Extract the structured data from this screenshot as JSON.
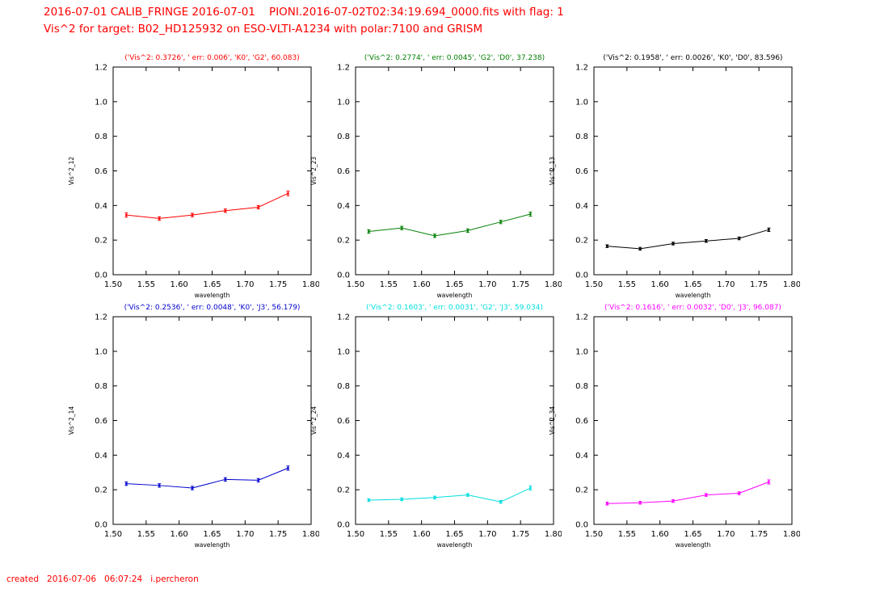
{
  "figure": {
    "title_line1": "2016-07-01 CALIB_FRINGE 2016-07-01    PIONI.2016-07-02T02:34:19.694_0000.fits with flag: 1",
    "title_line2": "Vis^2 for target: B02_HD125932 on ESO-VLTI-A1234 with polar:7100 and GRISM",
    "title_color": "#ff0000",
    "created": "created   2016-07-06   06:07:24   i.percheron"
  },
  "chart_data": [
    {
      "id": "subplot-vis2-12",
      "type": "line",
      "title": "('Vis^2: 0.3726', ' err: 0.006', 'K0', 'G2', 60.083)",
      "color": "#ff0000",
      "xlabel": "wavelength",
      "ylabel": "Vis^2_12",
      "xlim": [
        1.5,
        1.8
      ],
      "ylim": [
        0.0,
        1.2
      ],
      "xticks": [
        1.5,
        1.55,
        1.6,
        1.65,
        1.7,
        1.75,
        1.8
      ],
      "xtick_labels": [
        "1.50",
        "1.55",
        "1.60",
        "1.65",
        "1.70",
        "1.75",
        "1.80"
      ],
      "yticks": [
        0.0,
        0.2,
        0.4,
        0.6,
        0.8,
        1.0,
        1.2
      ],
      "ytick_labels": [
        "0.0",
        "0.2",
        "0.4",
        "0.6",
        "0.8",
        "1.0",
        "1.2"
      ],
      "x": [
        1.52,
        1.57,
        1.62,
        1.67,
        1.72,
        1.765
      ],
      "y": [
        0.345,
        0.325,
        0.345,
        0.37,
        0.39,
        0.47
      ],
      "yerr": [
        0.012,
        0.01,
        0.01,
        0.01,
        0.01,
        0.013
      ],
      "row": 0,
      "col": 0
    },
    {
      "id": "subplot-vis2-23",
      "type": "line",
      "title": "('Vis^2: 0.2774', ' err: 0.0045', 'G2', 'D0', 37.238)",
      "color": "#007f00",
      "xlabel": "wavelength",
      "ylabel": "Vis^2_23",
      "xlim": [
        1.5,
        1.8
      ],
      "ylim": [
        0.0,
        1.2
      ],
      "xticks": [
        1.5,
        1.55,
        1.6,
        1.65,
        1.7,
        1.75,
        1.8
      ],
      "xtick_labels": [
        "1.50",
        "1.55",
        "1.60",
        "1.65",
        "1.70",
        "1.75",
        "1.80"
      ],
      "yticks": [
        0.0,
        0.2,
        0.4,
        0.6,
        0.8,
        1.0,
        1.2
      ],
      "ytick_labels": [
        "0.0",
        "0.2",
        "0.4",
        "0.6",
        "0.8",
        "1.0",
        "1.2"
      ],
      "x": [
        1.52,
        1.57,
        1.62,
        1.67,
        1.72,
        1.765
      ],
      "y": [
        0.25,
        0.27,
        0.225,
        0.255,
        0.305,
        0.35
      ],
      "yerr": [
        0.01,
        0.01,
        0.01,
        0.01,
        0.01,
        0.012
      ],
      "row": 0,
      "col": 1
    },
    {
      "id": "subplot-vis2-13",
      "type": "line",
      "title": "('Vis^2: 0.1958', ' err: 0.0026', 'K0', 'D0', 83.596)",
      "color": "#000000",
      "xlabel": "wavelength",
      "ylabel": "Vis^2_13",
      "xlim": [
        1.5,
        1.8
      ],
      "ylim": [
        0.0,
        1.2
      ],
      "xticks": [
        1.5,
        1.55,
        1.6,
        1.65,
        1.7,
        1.75,
        1.8
      ],
      "xtick_labels": [
        "1.50",
        "1.55",
        "1.60",
        "1.65",
        "1.70",
        "1.75",
        "1.80"
      ],
      "yticks": [
        0.0,
        0.2,
        0.4,
        0.6,
        0.8,
        1.0,
        1.2
      ],
      "ytick_labels": [
        "0.0",
        "0.2",
        "0.4",
        "0.6",
        "0.8",
        "1.0",
        "1.2"
      ],
      "x": [
        1.52,
        1.57,
        1.62,
        1.67,
        1.72,
        1.765
      ],
      "y": [
        0.165,
        0.15,
        0.18,
        0.195,
        0.21,
        0.26
      ],
      "yerr": [
        0.008,
        0.008,
        0.008,
        0.008,
        0.008,
        0.01
      ],
      "row": 0,
      "col": 2
    },
    {
      "id": "subplot-vis2-14",
      "type": "line",
      "title": "('Vis^2: 0.2536', ' err: 0.0048', 'K0', 'J3', 56.179)",
      "color": "#0000cc",
      "xlabel": "wavelength",
      "ylabel": "Vis^2_14",
      "xlim": [
        1.5,
        1.8
      ],
      "ylim": [
        0.0,
        1.2
      ],
      "xticks": [
        1.5,
        1.55,
        1.6,
        1.65,
        1.7,
        1.75,
        1.8
      ],
      "xtick_labels": [
        "1.50",
        "1.55",
        "1.60",
        "1.65",
        "1.70",
        "1.75",
        "1.80"
      ],
      "yticks": [
        0.0,
        0.2,
        0.4,
        0.6,
        0.8,
        1.0,
        1.2
      ],
      "ytick_labels": [
        "0.0",
        "0.2",
        "0.4",
        "0.6",
        "0.8",
        "1.0",
        "1.2"
      ],
      "x": [
        1.52,
        1.57,
        1.62,
        1.67,
        1.72,
        1.765
      ],
      "y": [
        0.235,
        0.225,
        0.21,
        0.26,
        0.255,
        0.325
      ],
      "yerr": [
        0.01,
        0.01,
        0.01,
        0.01,
        0.01,
        0.012
      ],
      "row": 1,
      "col": 0
    },
    {
      "id": "subplot-vis2-24",
      "type": "line",
      "title": "('Vis^2: 0.1603', ' err: 0.0031', 'G2', 'J3', 59.034)",
      "color": "#00dddd",
      "xlabel": "wavelength",
      "ylabel": "Vis^2_24",
      "xlim": [
        1.5,
        1.8
      ],
      "ylim": [
        0.0,
        1.2
      ],
      "xticks": [
        1.5,
        1.55,
        1.6,
        1.65,
        1.7,
        1.75,
        1.8
      ],
      "xtick_labels": [
        "1.50",
        "1.55",
        "1.60",
        "1.65",
        "1.70",
        "1.75",
        "1.80"
      ],
      "yticks": [
        0.0,
        0.2,
        0.4,
        0.6,
        0.8,
        1.0,
        1.2
      ],
      "ytick_labels": [
        "0.0",
        "0.2",
        "0.4",
        "0.6",
        "0.8",
        "1.0",
        "1.2"
      ],
      "x": [
        1.52,
        1.57,
        1.62,
        1.67,
        1.72,
        1.765
      ],
      "y": [
        0.14,
        0.145,
        0.155,
        0.17,
        0.13,
        0.21
      ],
      "yerr": [
        0.008,
        0.008,
        0.008,
        0.008,
        0.008,
        0.012
      ],
      "row": 1,
      "col": 1
    },
    {
      "id": "subplot-vis2-34",
      "type": "line",
      "title": "('Vis^2: 0.1616', ' err: 0.0032', 'D0', 'J3', 96.087)",
      "color": "#ff00ff",
      "xlabel": "wavelength",
      "ylabel": "Vis^2_34",
      "xlim": [
        1.5,
        1.8
      ],
      "ylim": [
        0.0,
        1.2
      ],
      "xticks": [
        1.5,
        1.55,
        1.6,
        1.65,
        1.7,
        1.75,
        1.8
      ],
      "xtick_labels": [
        "1.50",
        "1.55",
        "1.60",
        "1.65",
        "1.70",
        "1.75",
        "1.80"
      ],
      "yticks": [
        0.0,
        0.2,
        0.4,
        0.6,
        0.8,
        1.0,
        1.2
      ],
      "ytick_labels": [
        "0.0",
        "0.2",
        "0.4",
        "0.6",
        "0.8",
        "1.0",
        "1.2"
      ],
      "x": [
        1.52,
        1.57,
        1.62,
        1.67,
        1.72,
        1.765
      ],
      "y": [
        0.12,
        0.125,
        0.135,
        0.17,
        0.18,
        0.245
      ],
      "yerr": [
        0.008,
        0.008,
        0.008,
        0.008,
        0.008,
        0.012
      ],
      "row": 1,
      "col": 2
    }
  ]
}
